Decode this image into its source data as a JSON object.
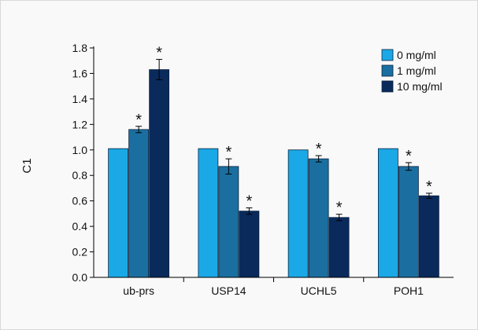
{
  "chart_data": {
    "type": "bar",
    "ylabel": "C1",
    "ylim": [
      0,
      1.8
    ],
    "yticks": [
      0.0,
      0.2,
      0.4,
      0.6,
      0.8,
      1.0,
      1.2,
      1.4,
      1.6,
      1.8
    ],
    "ytick_labels": [
      "0.0",
      "0.2",
      "0.4",
      "0.6",
      "0.8",
      "1.0",
      "1.2",
      "1.4",
      "1.6",
      "1.8"
    ],
    "categories": [
      "ub-prs",
      "USP14",
      "UCHL5",
      "POH1"
    ],
    "legend_position": "top-right",
    "grid": false,
    "series": [
      {
        "name": "0 mg/ml",
        "color": "#1aa9e6",
        "values": [
          1.01,
          1.01,
          1.0,
          1.01
        ],
        "errors": [
          0,
          0,
          0,
          0
        ],
        "significant": [
          false,
          false,
          false,
          false
        ]
      },
      {
        "name": "1 mg/ml",
        "color": "#1a6fa0",
        "values": [
          1.16,
          0.87,
          0.93,
          0.87
        ],
        "errors": [
          0.025,
          0.06,
          0.025,
          0.03
        ],
        "significant": [
          true,
          true,
          true,
          true
        ]
      },
      {
        "name": "10 mg/ml",
        "color": "#0a2a5c",
        "values": [
          1.63,
          0.52,
          0.47,
          0.64
        ],
        "errors": [
          0.08,
          0.025,
          0.025,
          0.02
        ],
        "significant": [
          true,
          true,
          true,
          true
        ]
      }
    ],
    "significance_marker": "*"
  }
}
